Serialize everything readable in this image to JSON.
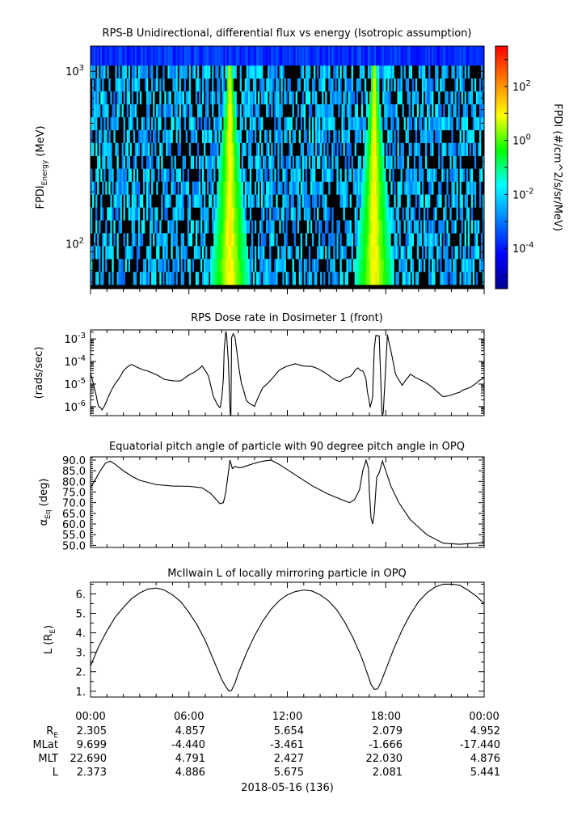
{
  "chart_data": [
    {
      "type": "heatmap",
      "title": "RPS-B  Unidirectional, differential flux vs energy (Isotropic assumption)",
      "ylabel": {
        "main": "FPDI",
        "sub": "Energy",
        "rest": " (MeV)"
      },
      "yscale": "log",
      "ylim": [
        55,
        1400
      ],
      "yticks": [
        {
          "base": "10",
          "exp": "3",
          "value": 1000
        },
        {
          "base": "10",
          "exp": "2",
          "value": 100
        }
      ],
      "xlim_hours": [
        0,
        24
      ],
      "belts_peak_hours": [
        8.5,
        17.3
      ],
      "colorbar": {
        "label": "FPDI (#/cm^2/s/sr/MeV)",
        "scale": "log",
        "range_log10": [
          -5.5,
          3.5
        ],
        "ticks": [
          {
            "base": "10",
            "exp": "2",
            "value": 100
          },
          {
            "base": "10",
            "exp": "0",
            "value": 1
          },
          {
            "base": "10",
            "exp": "-2",
            "value": 0.01
          },
          {
            "base": "10",
            "exp": "-4",
            "value": 0.0001
          }
        ],
        "colormap": [
          "#00008f",
          "#0000ff",
          "#0080ff",
          "#00ffff",
          "#00ff00",
          "#ffff00",
          "#ff8000",
          "#ff0000"
        ]
      }
    },
    {
      "type": "line",
      "title": "RPS  Dose rate in Dosimeter 1 (front)",
      "ylabel": "(rads/sec)",
      "yscale": "log",
      "ylim": [
        4e-07,
        0.0025
      ],
      "yticks": [
        {
          "base": "10",
          "exp": "-3",
          "value": 0.001
        },
        {
          "base": "10",
          "exp": "-4",
          "value": 0.0001
        },
        {
          "base": "10",
          "exp": "-5",
          "value": 1e-05
        },
        {
          "base": "10",
          "exp": "-6",
          "value": 1e-06
        }
      ],
      "x": [
        0,
        0.35,
        0.5,
        0.7,
        1.0,
        1.5,
        2.0,
        2.5,
        3.5,
        4.5,
        5.5,
        6.3,
        6.8,
        7.2,
        7.5,
        7.7,
        7.9,
        8.0,
        8.1,
        8.15,
        8.2,
        8.25,
        8.3,
        8.4,
        8.55,
        8.6,
        8.7,
        8.8,
        9.0,
        9.2,
        9.5,
        10.0,
        10.5,
        11.5,
        12.5,
        13.5,
        14.5,
        15.2,
        15.7,
        16.0,
        16.3,
        16.6,
        16.8,
        16.9,
        17.0,
        17.05,
        17.1,
        17.2,
        17.25,
        17.3,
        17.4,
        17.6,
        17.8,
        18.1,
        18.3,
        18.6,
        19.0,
        19.5,
        20.5,
        21.5,
        22.5,
        23.0,
        23.5,
        24.0
      ],
      "y": [
        3e-05,
        3e-06,
        1e-06,
        7e-07,
        2e-06,
        1e-05,
        4e-05,
        7e-05,
        4e-05,
        1.5e-05,
        1.5e-05,
        3e-05,
        7e-05,
        2e-05,
        3e-06,
        1.2e-06,
        1e-06,
        2e-06,
        2e-05,
        0.0003,
        0.001,
        0.002,
        0.0015,
        0.0001,
        1e-07,
        0.001,
        0.0018,
        0.0012,
        0.0001,
        1e-05,
        2e-06,
        1e-06,
        7e-06,
        4e-05,
        8e-05,
        6e-05,
        2.5e-05,
        1.3e-05,
        2e-05,
        3e-05,
        5e-05,
        4e-05,
        1.5e-05,
        4e-06,
        1.5e-06,
        1e-06,
        1.2e-06,
        3e-06,
        3e-05,
        0.0004,
        0.0013,
        0.0015,
        1e-07,
        0.0017,
        0.0003,
        3e-05,
        8e-06,
        3e-05,
        1e-05,
        3e-06,
        4e-06,
        7e-06,
        1e-05,
        2e-05
      ]
    },
    {
      "type": "line",
      "title": "Equatorial pitch angle of particle with 90 degree pitch angle in OPQ",
      "ylabel": {
        "main": "α",
        "sub": "Eq",
        "rest": " (deg)"
      },
      "ylim": [
        49,
        91.5
      ],
      "yticks": [
        90,
        85,
        80,
        75,
        70,
        65,
        60,
        55,
        50
      ],
      "x": [
        0,
        0.3,
        0.6,
        0.9,
        1.2,
        1.5,
        2.0,
        2.5,
        3.0,
        3.5,
        4.0,
        5.0,
        6.0,
        6.8,
        7.3,
        7.6,
        7.9,
        8.1,
        8.25,
        8.4,
        8.5,
        8.65,
        8.8,
        9.0,
        9.2,
        9.6,
        10.0,
        10.5,
        11.0,
        11.5,
        12.5,
        13.5,
        14.5,
        15.3,
        15.8,
        16.1,
        16.4,
        16.6,
        16.8,
        16.95,
        17.0,
        17.1,
        17.2,
        17.3,
        17.45,
        17.6,
        17.8,
        18.0,
        18.3,
        18.8,
        19.5,
        20.5,
        21.5,
        22.5,
        23.5,
        24.0
      ],
      "y": [
        77,
        81,
        85,
        88.5,
        89.5,
        88,
        85,
        82.5,
        80.5,
        79.5,
        78.5,
        77.8,
        77.7,
        77,
        74.5,
        72,
        69.5,
        70,
        75,
        84,
        90,
        86,
        87,
        86.5,
        86.5,
        87.5,
        88.5,
        89.5,
        90,
        88,
        83,
        78,
        74,
        71.5,
        70,
        71.5,
        76,
        85,
        90,
        86,
        75,
        63,
        60,
        65,
        82,
        84,
        89.5,
        85,
        78,
        70,
        62,
        55,
        51,
        50.5,
        51,
        51.3
      ]
    },
    {
      "type": "line",
      "title": "McIlwain L of locally mirroring particle in OPQ",
      "ylabel": {
        "main": "L (R",
        "sub": "E",
        "rest": ")"
      },
      "ylim": [
        0.7,
        6.6
      ],
      "yticks": [
        6,
        5,
        4,
        3,
        2,
        1
      ],
      "x": [
        0,
        0.5,
        1.0,
        1.5,
        2.0,
        2.5,
        3.0,
        3.5,
        4.0,
        4.5,
        5.0,
        5.5,
        6.0,
        6.5,
        7.0,
        7.5,
        8.0,
        8.2,
        8.4,
        8.5,
        8.6,
        8.8,
        9.0,
        9.5,
        10.0,
        10.5,
        11.0,
        11.5,
        12.0,
        12.5,
        13.0,
        13.5,
        14.0,
        14.5,
        15.0,
        15.5,
        16.0,
        16.5,
        16.9,
        17.1,
        17.3,
        17.5,
        17.7,
        18.0,
        18.5,
        19.0,
        19.5,
        20.0,
        20.5,
        21.0,
        21.5,
        22.0,
        22.5,
        23.0,
        23.5,
        24.0
      ],
      "y": [
        2.3,
        3.3,
        4.1,
        4.8,
        5.3,
        5.75,
        6.05,
        6.25,
        6.3,
        6.2,
        5.95,
        5.6,
        5.05,
        4.4,
        3.6,
        2.6,
        1.6,
        1.3,
        1.05,
        1.0,
        1.05,
        1.4,
        1.9,
        2.95,
        3.85,
        4.6,
        5.2,
        5.65,
        5.95,
        6.12,
        6.2,
        6.15,
        5.95,
        5.65,
        5.2,
        4.55,
        3.75,
        2.8,
        1.85,
        1.35,
        1.1,
        1.12,
        1.45,
        2.1,
        3.2,
        4.15,
        4.95,
        5.6,
        6.05,
        6.35,
        6.5,
        6.5,
        6.45,
        6.2,
        5.9,
        5.5
      ]
    }
  ],
  "time_axis": {
    "labels": [
      "00:00",
      "06:00",
      "12:00",
      "18:00",
      "00:00"
    ],
    "date_label": "2018-05-16 (136)"
  },
  "ephemeris": {
    "rows": [
      {
        "name": "R",
        "name_sub": "E",
        "values": [
          "2.305",
          "4.857",
          "5.654",
          "2.079",
          "4.952"
        ]
      },
      {
        "name": "MLat",
        "name_sub": "",
        "values": [
          "9.699",
          "-4.440",
          "-3.461",
          "-1.666",
          "-17.440"
        ]
      },
      {
        "name": "MLT",
        "name_sub": "",
        "values": [
          "22.690",
          "4.791",
          "2.427",
          "22.030",
          "4.876"
        ]
      },
      {
        "name": "L",
        "name_sub": "",
        "values": [
          "2.373",
          "4.886",
          "5.675",
          "2.081",
          "5.441"
        ]
      }
    ]
  }
}
